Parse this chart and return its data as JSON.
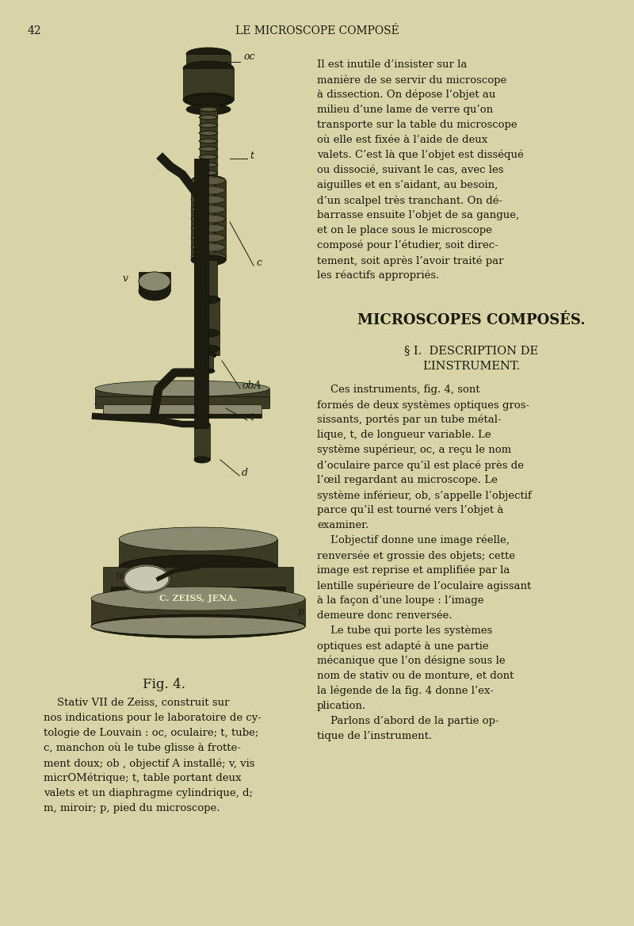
{
  "bg_color": "#d9d4a8",
  "page_bg": "#cec98e",
  "text_color": "#1a1a0a",
  "page_number": "42",
  "header": "LE MICROSCOPE COMPOSÉ",
  "fig_caption_bold": "Fig. 4.",
  "fig_caption": "Stativ VII de Zeɪss, construit sur\nnos indications pour le laboratoire de cy-\ntologie de Louvain : oc, oculaire; t, tube;\nc, manchon où le tube glisse à frotte-\nment doux; ob , objectif A installé; v, vis\nmicrOMétrique; t, table portant deux\nvalets et un diaphragme cylindrique, d;\nm, miroir; p, pied du microscope.",
  "right_text_top": "Il est inutile d’insister sur la\nmanière de se servir du microscope\nà dissection. On dépose l’objet au\nmilieu d’une lame de verre qu’on\ntransporte sur la table du microscope\noù elle est fixée à l’aide de deux\nvalets. C’est là que l’objet est disséqué\nou dissocié, suivant le cas, avec les\naiguilles et en s’aidant, au besoin,\nd’un scalpel très tranchant. On dé-\nbarrasse ensuite l’objet de sa gangue,\net on le place sous le microscope\ncomposé pour l’étudier, soit direc-\ntement, soit après l’avoir traité par\nles réactifs appropriés.",
  "section_header1": "MICROSCOPES COMPOSÉS.",
  "section_header2": "§ I.  DESCRIPTION DE\n       L’INSTRUMENT.",
  "bottom_right_text": "Ces instruments, fig. 4, sont\nformés de deux systèmes optiques gros-\nsissants, portés par un tube métal-\nlique, t, de longueur variable. Le\nsystème supérieur, oc, a reçu le nom\nd’oculaire parce qu’il est placé près de\nl’œil regardant au microscope. Le\nsystème inférieur, ob, s’appelle l’objectif\nparce qu’il est tourné vers l’objet à\nexaminer.\n    L’objectif donne une image réelle,\nrenversée et grossie des objets; cette\nimage est reprise et amplifiée par la\nlentille supérieure de l’oculaire agissant\nà la façon d’une loupe : l’image\ndemeure donc renversée.\n    Le tube qui porte les systèmes\noptiques est adapté à une partie\nmécanique que l’on désigne sous le\nnom de stativ ou de monture, et dont\nla légende de la fig. 4 donne l’ex-\nplication.\n    Parlons d’abord de la partie op-\ntique de l’instrument."
}
